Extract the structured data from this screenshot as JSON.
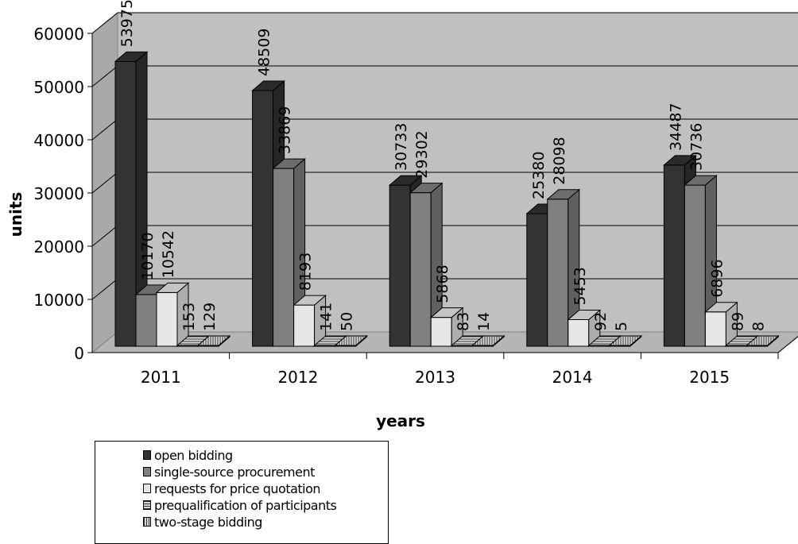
{
  "chart_data": {
    "type": "bar",
    "categories": [
      "2011",
      "2012",
      "2013",
      "2014",
      "2015"
    ],
    "series": [
      {
        "name": "open bidding",
        "values": [
          53975,
          48509,
          30733,
          25380,
          34487
        ],
        "color": "#333333"
      },
      {
        "name": "single-source procurement",
        "values": [
          10170,
          33869,
          29302,
          28098,
          30736
        ],
        "color": "#808080"
      },
      {
        "name": "requests for price quotation",
        "values": [
          10542,
          8193,
          5868,
          5453,
          6896
        ],
        "color": "#e6e6e6"
      },
      {
        "name": "prequalification of participants",
        "values": [
          153,
          141,
          83,
          92,
          89
        ],
        "color": "#b0b0b0",
        "pattern": "horizontal-hatch"
      },
      {
        "name": "two-stage bidding",
        "values": [
          129,
          50,
          14,
          5,
          8
        ],
        "color": "#b0b0b0",
        "pattern": "vertical-hatch"
      }
    ],
    "yticks": [
      0,
      10000,
      20000,
      30000,
      40000,
      50000,
      60000
    ],
    "ylim": [
      0,
      60000
    ],
    "xlabel": "years",
    "ylabel": "units",
    "grid": true,
    "style": "3d-column",
    "legend_position": "bottom-left"
  }
}
